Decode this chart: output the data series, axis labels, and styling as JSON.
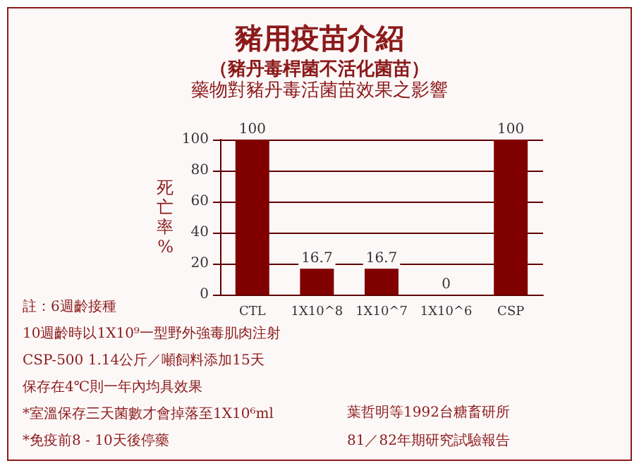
{
  "chart_data": {
    "type": "bar",
    "title": "豬用疫苗介紹",
    "subtitle": "（豬丹毒桿菌不活化菌苗）",
    "annotations": [
      "藥物對豬丹毒活菌苗效果之影響",
      "註：6週齡接種",
      "10週齡時以1X10⁹一型野外強毒肌肉注射",
      "CSP-500 1.14公斤／噸飼料添加15天",
      "保存在4℃則一年內均具效果",
      "*室溫保存三天菌數才會掉落至1X10⁶ml",
      "*免疫前8 - 10天後停藥",
      "葉哲明等1992台糖畜研所",
      "81／82年期研究試驗報告"
    ],
    "ylabel": "死亡率%",
    "categories": [
      "CTL",
      "1X10^8",
      "1X10^7",
      "1X10^6",
      "CSP"
    ],
    "values": [
      100,
      16.7,
      16.7,
      0,
      100
    ],
    "color": "#800000",
    "ylim": [
      0,
      100
    ],
    "yticks": [
      0,
      20,
      40,
      60,
      80,
      100
    ],
    "grid": "y",
    "data_labels": true
  }
}
